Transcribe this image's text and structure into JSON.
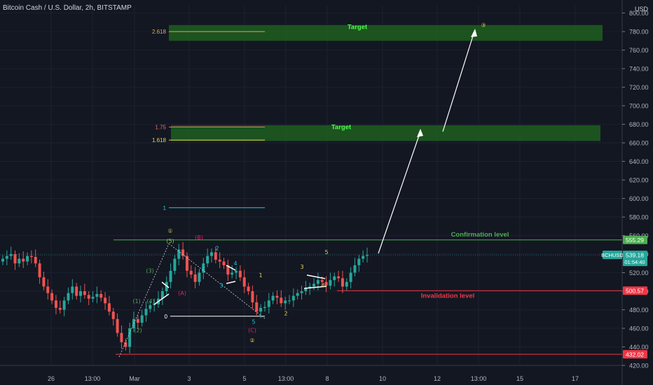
{
  "header": {
    "title": "Bitcoin Cash / U.S. Dollar, 2h, BITSTAMP"
  },
  "price_axis": {
    "currency": "USD",
    "ticks": [
      420,
      440,
      460,
      480,
      500,
      520,
      540,
      560,
      580,
      600,
      620,
      640,
      660,
      680,
      700,
      720,
      740,
      760,
      780,
      800
    ],
    "tick_labels": [
      "420.00",
      "440.00",
      "460.00",
      "480.00",
      "500.00",
      "520.00",
      "540.00",
      "560.00",
      "580.00",
      "600.00",
      "620.00",
      "640.00",
      "660.00",
      "680.00",
      "700.00",
      "720.00",
      "740.00",
      "760.00",
      "780.00",
      "800.00"
    ]
  },
  "time_axis": {
    "labels": [
      "26",
      "13:00",
      "Mar",
      "3",
      "5",
      "13:00",
      "8",
      "10",
      "12",
      "13:00",
      "15",
      "17"
    ]
  },
  "chart_data": {
    "type": "candlestick",
    "symbol": "BCHUSD",
    "ylim": [
      420,
      808
    ],
    "last_price": 539.18,
    "last_price_label": "539.18",
    "countdown": "01:54:40",
    "series_color_up": "#26a69a",
    "series_color_down": "#ef5350",
    "horizontal_levels": [
      {
        "name": "Confirmation level",
        "value": 555.29,
        "label": "555.29",
        "color": "#4caf50"
      },
      {
        "name": "Invalidation level",
        "value": 500.57,
        "label": "500.57",
        "color": "#f23645"
      },
      {
        "name": "",
        "value": 432.02,
        "label": "432.02",
        "color": "#f23645"
      }
    ],
    "target_zones": [
      {
        "label": "Target",
        "low": 770,
        "high": 787,
        "color": "#1e5e1e"
      },
      {
        "label": "Target",
        "low": 662,
        "high": 679,
        "color": "#1e5e1e"
      }
    ],
    "fib_levels": [
      {
        "label": "2.618",
        "value": 780,
        "color": "#e0a84a"
      },
      {
        "label": "1.75",
        "value": 677,
        "color": "#ef6c6c"
      },
      {
        "label": "1.618",
        "value": 663,
        "color": "#e8d44d"
      },
      {
        "label": "1",
        "value": 590,
        "color": "#26c6da"
      },
      {
        "label": "0",
        "value": 473,
        "color": "#ffffff"
      }
    ],
    "wave_labels": [
      {
        "text": "①",
        "x": 243,
        "price": 563,
        "color": "#e8d44d"
      },
      {
        "text": "(5)",
        "x": 243,
        "price": 552,
        "color": "#8bc34a"
      },
      {
        "text": "(B)",
        "x": 284,
        "price": 556,
        "color": "#e91e63"
      },
      {
        "text": "2",
        "x": 310,
        "price": 544,
        "color": "#26c6da"
      },
      {
        "text": "1",
        "x": 290,
        "price": 522,
        "color": "#26c6da"
      },
      {
        "text": "4",
        "x": 336,
        "price": 528,
        "color": "#26c6da"
      },
      {
        "text": "3",
        "x": 316,
        "price": 504,
        "color": "#26c6da"
      },
      {
        "text": "5",
        "x": 362,
        "price": 465,
        "color": "#26c6da"
      },
      {
        "text": "(C)",
        "x": 360,
        "price": 456,
        "color": "#e91e63"
      },
      {
        "text": "②",
        "x": 360,
        "price": 445,
        "color": "#e8d44d"
      },
      {
        "text": "(3)",
        "x": 214,
        "price": 520,
        "color": "#4caf50"
      },
      {
        "text": "(A)",
        "x": 260,
        "price": 496,
        "color": "#e91e63"
      },
      {
        "text": "(1)",
        "x": 195,
        "price": 487,
        "color": "#4caf50"
      },
      {
        "text": "(4)",
        "x": 215,
        "price": 487,
        "color": "#4caf50"
      },
      {
        "text": "(2)",
        "x": 197,
        "price": 456,
        "color": "#4caf50"
      },
      {
        "text": "1",
        "x": 372,
        "price": 515,
        "color": "#e8d44d"
      },
      {
        "text": "2",
        "x": 408,
        "price": 474,
        "color": "#e8d44d"
      },
      {
        "text": "3",
        "x": 431,
        "price": 524,
        "color": "#e8d44d"
      },
      {
        "text": "4",
        "x": 461,
        "price": 504,
        "color": "#e8d44d"
      },
      {
        "text": "5",
        "x": 466,
        "price": 540,
        "color": "#e8d44d"
      },
      {
        "text": "③",
        "x": 690,
        "price": 785,
        "color": "#e8d44d"
      }
    ],
    "annotations": [
      {
        "text": "Target",
        "x": 510,
        "price": 785,
        "color": "#4cff4c"
      },
      {
        "text": "Target",
        "x": 487,
        "price": 677,
        "color": "#4cff4c"
      },
      {
        "text": "Confirmation level",
        "x": 685,
        "price": 561,
        "color": "#4caf50"
      },
      {
        "text": "Invalidation level",
        "x": 639,
        "price": 495,
        "color": "#f23645"
      }
    ],
    "candles_close_path": [
      535,
      538,
      540,
      530,
      535,
      532,
      538,
      537,
      530,
      515,
      505,
      498,
      490,
      482,
      480,
      490,
      498,
      505,
      495,
      500,
      496,
      492,
      494,
      497,
      493,
      487,
      478,
      470,
      455,
      445,
      440,
      460,
      470,
      466,
      474,
      481,
      485,
      486,
      492,
      500,
      510,
      522,
      535,
      545,
      538,
      522,
      518,
      510,
      520,
      530,
      538,
      542,
      534,
      532,
      528,
      518,
      520,
      522,
      515,
      505,
      500,
      488,
      478,
      482,
      483,
      490,
      495,
      493,
      487,
      490,
      490,
      495,
      498,
      500,
      503,
      505,
      508,
      512,
      510,
      506,
      512,
      516,
      514,
      505,
      510,
      520,
      528,
      535,
      538,
      539
    ]
  }
}
